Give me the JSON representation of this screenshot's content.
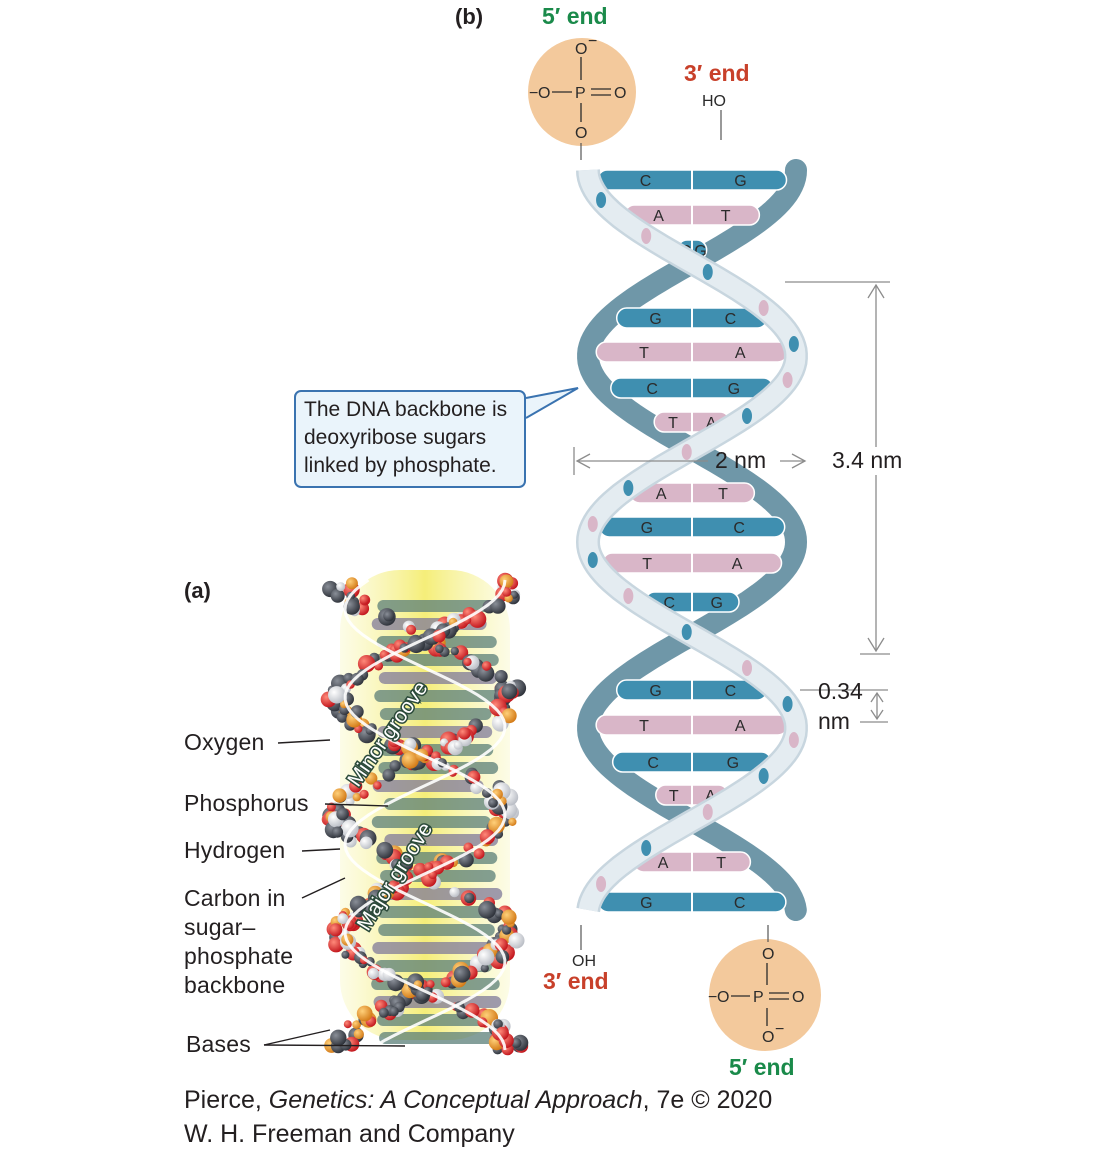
{
  "panel_a": "(a)",
  "panel_b": "(b)",
  "top_5_end": "5′ end",
  "top_3_end": "3′ end",
  "bottom_3_end": "3′ end",
  "bottom_5_end": "5′ end",
  "top_ho": "HO",
  "bottom_oh": "OH",
  "phosphate": {
    "o_minus": "O",
    "o": "O",
    "p": "P",
    "o_double": "O",
    "neg": "−"
  },
  "base_pairs": [
    [
      "C",
      "G"
    ],
    [
      "A",
      "T"
    ],
    [
      "C",
      "G"
    ],
    [
      "G",
      "C"
    ],
    [
      "T",
      "A"
    ],
    [
      "C",
      "G"
    ],
    [
      "T",
      "A"
    ],
    [
      "A",
      "T"
    ],
    [
      "G",
      "C"
    ],
    [
      "T",
      "A"
    ],
    [
      "C",
      "G"
    ],
    [
      "G",
      "C"
    ],
    [
      "T",
      "A"
    ],
    [
      "C",
      "G"
    ],
    [
      "T",
      "A"
    ],
    [
      "A",
      "T"
    ],
    [
      "G",
      "C"
    ]
  ],
  "callout": [
    "The DNA backbone is",
    "deoxyribose sugars",
    "linked by phosphate."
  ],
  "dimensions": {
    "width": "2 nm",
    "pitch": "3.4 nm",
    "rise_1": "0.34",
    "rise_2": "nm"
  },
  "atom_labels": {
    "oxygen": "Oxygen",
    "phosphorus": "Phosphorus",
    "hydrogen": "Hydrogen",
    "carbon": [
      "Carbon in",
      "sugar–",
      "phosphate",
      "backbone"
    ],
    "bases": "Bases"
  },
  "grooves": {
    "minor": "Minor groove",
    "major": "Major groove"
  },
  "credit": {
    "author": "Pierce, ",
    "title": "Genetics: A Conceptual Approach",
    "edition": ", 7e © 2020",
    "publisher": "W. H. Freeman and Company"
  },
  "colors": {
    "blue_base": "#3f8fb0",
    "pink_base": "#d9b6c8",
    "backbone_dark": "#6f97a8",
    "backbone_light": "#dfe8ee",
    "phosphate_fill": "#f3c99c",
    "green": "#1a8a4a",
    "red": "#c8402a",
    "callout_border": "#3a73b0"
  }
}
